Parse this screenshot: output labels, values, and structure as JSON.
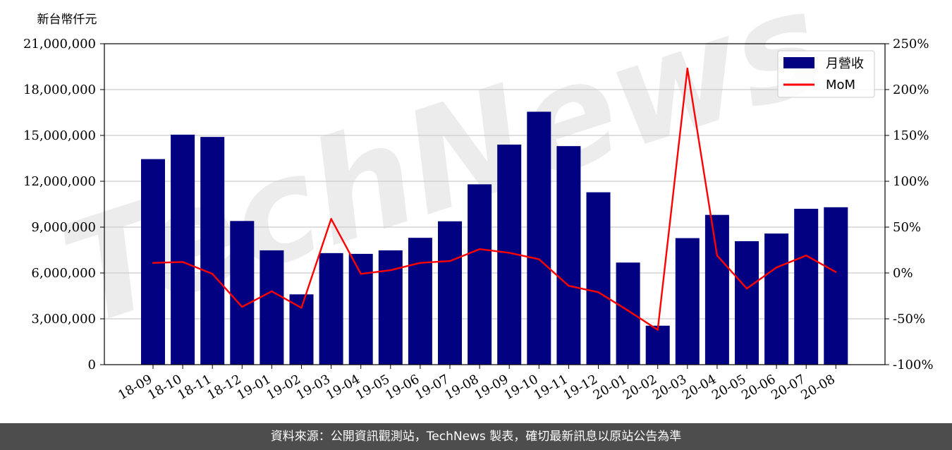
{
  "chart_data": {
    "type": "bar",
    "unit_label": "新台幣仟元",
    "categories": [
      "18-09",
      "18-10",
      "18-11",
      "18-12",
      "19-01",
      "19-02",
      "19-03",
      "19-04",
      "19-05",
      "19-06",
      "19-07",
      "19-08",
      "19-09",
      "19-10",
      "19-11",
      "19-12",
      "20-01",
      "20-02",
      "20-03",
      "20-04",
      "20-05",
      "20-06",
      "20-07",
      "20-08"
    ],
    "series": [
      {
        "name": "月營收",
        "axis": "left",
        "type": "bar",
        "color": "#000080",
        "values": [
          13450000,
          15050000,
          14900000,
          9400000,
          7480000,
          4600000,
          7300000,
          7250000,
          7480000,
          8300000,
          9380000,
          11800000,
          14400000,
          16550000,
          14300000,
          11280000,
          6680000,
          2550000,
          8280000,
          9800000,
          8080000,
          8580000,
          10200000,
          10300000
        ]
      },
      {
        "name": "MoM",
        "axis": "right",
        "type": "line",
        "color": "#ff0000",
        "values": [
          11,
          12,
          -1,
          -37,
          -20,
          -38,
          59,
          -1,
          3,
          11,
          13,
          26,
          22,
          15,
          -14,
          -21,
          -41,
          -62,
          223,
          19,
          -17,
          6,
          19,
          1
        ]
      }
    ],
    "y_left": {
      "min": 0,
      "max": 21000000,
      "ticks": [
        0,
        3000000,
        6000000,
        9000000,
        12000000,
        15000000,
        18000000,
        21000000
      ]
    },
    "y_right": {
      "min": -100,
      "max": 250,
      "ticks": [
        -100,
        -50,
        0,
        50,
        100,
        150,
        200,
        250
      ]
    },
    "grid": "horizontal",
    "legend_position": "top-right"
  },
  "watermark": "TechNews",
  "footer": "資料來源：公開資訊觀測站，TechNews 製表，確切最新訊息以原站公告為準"
}
